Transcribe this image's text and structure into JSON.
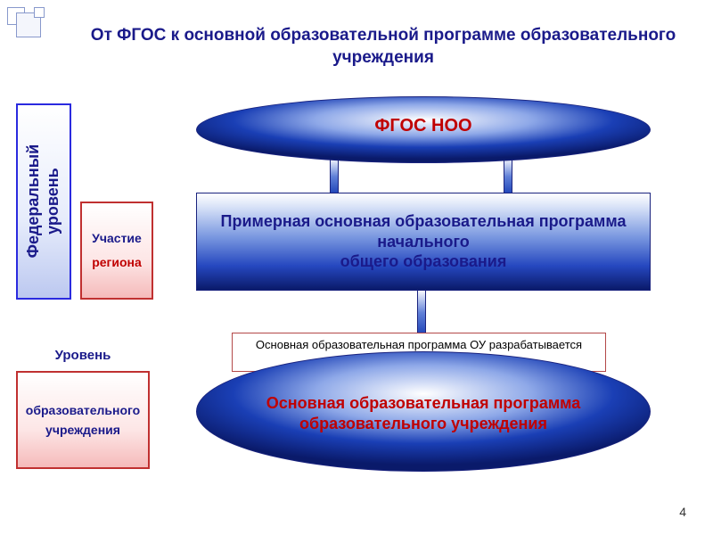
{
  "title_color": "#1a1a8a",
  "title": "От ФГОС к основной образовательной программе образовательного учреждения",
  "ellipse_top": {
    "label": "ФГОС НОО"
  },
  "rect_mid": {
    "label": "Примерная основная образовательная программа  начального\nобщего образования"
  },
  "note": {
    "text": "Основная образовательная программа ОУ разрабатывается самостоятельно",
    "color": "#1a1a1a"
  },
  "ellipse_bot": {
    "label": "Основная образовательная программа образовательного учреждения"
  },
  "federal": {
    "label": "Федеральный уровень"
  },
  "region": {
    "line1": "Участие",
    "line2": "региона",
    "line1_color": "#1a1a8a",
    "line2_color": "#c00000"
  },
  "inst_heading": {
    "text": "Уровень",
    "color": "#1a1a8a"
  },
  "inst": {
    "text": "образовательного учреждения",
    "color": "#1a1a8a"
  },
  "page_number": "4",
  "deco_color": "#8899cc"
}
